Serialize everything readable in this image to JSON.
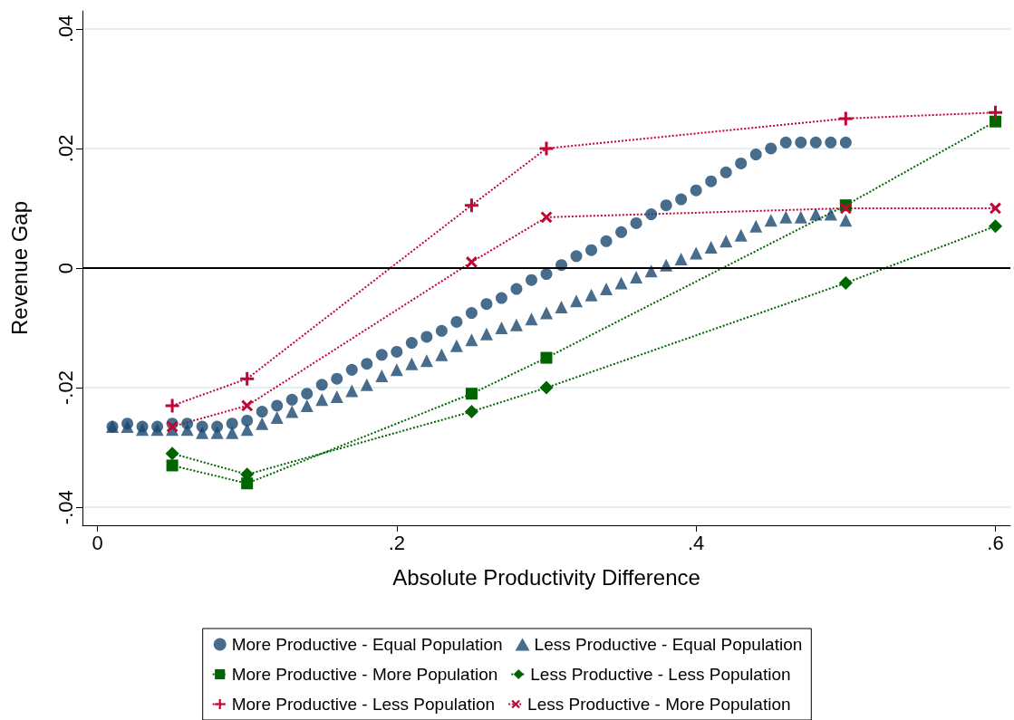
{
  "chart_data": {
    "type": "scatter",
    "xlabel": "Absolute Productivity Difference",
    "ylabel": "Revenue Gap",
    "xlim": [
      -0.01,
      0.61
    ],
    "ylim": [
      -0.043,
      0.043
    ],
    "xticks": [
      0,
      {
        "value": 0.2,
        "label": ".2"
      },
      {
        "value": 0.4,
        "label": ".4"
      },
      {
        "value": 0.6,
        "label": ".6"
      }
    ],
    "yticks": [
      {
        "value": -0.04,
        "label": "-.04"
      },
      {
        "value": -0.02,
        "label": "-.02"
      },
      0,
      {
        "value": 0.02,
        "label": ".02"
      },
      {
        "value": 0.04,
        "label": ".04"
      }
    ],
    "grid": "y",
    "legend": "bottom",
    "ref_lines": [
      {
        "axis": "y",
        "value": 0,
        "color": "#000000",
        "line_style": "solid"
      }
    ],
    "series": [
      {
        "name": "More Productive - Equal Population",
        "marker": "circle",
        "color": "#1a476f",
        "x": [
          0.01,
          0.02,
          0.03,
          0.04,
          0.05,
          0.06,
          0.07,
          0.08,
          0.09,
          0.1,
          0.11,
          0.12,
          0.13,
          0.14,
          0.15,
          0.16,
          0.17,
          0.18,
          0.19,
          0.2,
          0.21,
          0.22,
          0.23,
          0.24,
          0.25,
          0.26,
          0.27,
          0.28,
          0.29,
          0.3,
          0.31,
          0.32,
          0.33,
          0.34,
          0.35,
          0.36,
          0.37,
          0.38,
          0.39,
          0.4,
          0.41,
          0.42,
          0.43,
          0.44,
          0.45,
          0.46,
          0.47,
          0.48,
          0.49,
          0.5
        ],
        "values": [
          -0.0265,
          -0.026,
          -0.0265,
          -0.0265,
          -0.026,
          -0.026,
          -0.0265,
          -0.0265,
          -0.026,
          -0.0255,
          -0.024,
          -0.023,
          -0.022,
          -0.021,
          -0.0195,
          -0.0185,
          -0.017,
          -0.016,
          -0.0145,
          -0.014,
          -0.0125,
          -0.0115,
          -0.0105,
          -0.009,
          -0.0075,
          -0.006,
          -0.005,
          -0.0035,
          -0.002,
          -0.001,
          0.0005,
          0.002,
          0.003,
          0.0045,
          0.006,
          0.0075,
          0.009,
          0.0105,
          0.0115,
          0.013,
          0.0145,
          0.016,
          0.0175,
          0.019,
          0.02,
          0.021,
          0.021,
          0.021,
          0.021,
          0.021
        ]
      },
      {
        "name": "Less Productive - Equal Population",
        "marker": "triangle",
        "color": "#1a476f",
        "x": [
          0.01,
          0.02,
          0.03,
          0.04,
          0.05,
          0.06,
          0.07,
          0.08,
          0.09,
          0.1,
          0.11,
          0.12,
          0.13,
          0.14,
          0.15,
          0.16,
          0.17,
          0.18,
          0.19,
          0.2,
          0.21,
          0.22,
          0.23,
          0.24,
          0.25,
          0.26,
          0.27,
          0.28,
          0.29,
          0.3,
          0.31,
          0.32,
          0.33,
          0.34,
          0.35,
          0.36,
          0.37,
          0.38,
          0.39,
          0.4,
          0.41,
          0.42,
          0.43,
          0.44,
          0.45,
          0.46,
          0.47,
          0.48,
          0.49,
          0.5
        ],
        "values": [
          -0.0265,
          -0.0265,
          -0.027,
          -0.027,
          -0.027,
          -0.027,
          -0.0275,
          -0.0275,
          -0.0275,
          -0.027,
          -0.026,
          -0.025,
          -0.024,
          -0.023,
          -0.022,
          -0.0215,
          -0.0205,
          -0.0195,
          -0.018,
          -0.017,
          -0.016,
          -0.0155,
          -0.0145,
          -0.013,
          -0.012,
          -0.011,
          -0.01,
          -0.0095,
          -0.0085,
          -0.0075,
          -0.0065,
          -0.0055,
          -0.0045,
          -0.0035,
          -0.0025,
          -0.0015,
          -0.0005,
          0.0005,
          0.0015,
          0.0025,
          0.0035,
          0.0045,
          0.0055,
          0.007,
          0.008,
          0.0085,
          0.0085,
          0.009,
          0.009,
          0.008
        ]
      },
      {
        "name": "More Productive - More Population",
        "type": "line",
        "marker": "square",
        "line_style": "dotted",
        "color": "#006400",
        "x": [
          0.05,
          0.1,
          0.25,
          0.3,
          0.5,
          0.6
        ],
        "values": [
          -0.033,
          -0.036,
          -0.021,
          -0.015,
          0.0105,
          0.0245
        ]
      },
      {
        "name": "Less Productive - Less Population",
        "type": "line",
        "marker": "diamond",
        "line_style": "dotted",
        "color": "#006400",
        "x": [
          0.05,
          0.1,
          0.25,
          0.3,
          0.5,
          0.6
        ],
        "values": [
          -0.031,
          -0.0345,
          -0.024,
          -0.02,
          -0.0025,
          0.007
        ]
      },
      {
        "name": "More Productive - Less Population",
        "type": "line",
        "marker": "plus",
        "line_style": "dotted",
        "color": "#c10534",
        "x": [
          0.05,
          0.1,
          0.25,
          0.3,
          0.5,
          0.6
        ],
        "values": [
          -0.023,
          -0.0185,
          0.0105,
          0.02,
          0.025,
          0.026
        ]
      },
      {
        "name": "Less Productive - More Population",
        "type": "line",
        "marker": "cross",
        "line_style": "dotted",
        "color": "#c10534",
        "x": [
          0.05,
          0.1,
          0.25,
          0.3,
          0.5,
          0.6
        ],
        "values": [
          -0.0265,
          -0.023,
          0.001,
          0.0085,
          0.01,
          0.01
        ]
      }
    ]
  }
}
